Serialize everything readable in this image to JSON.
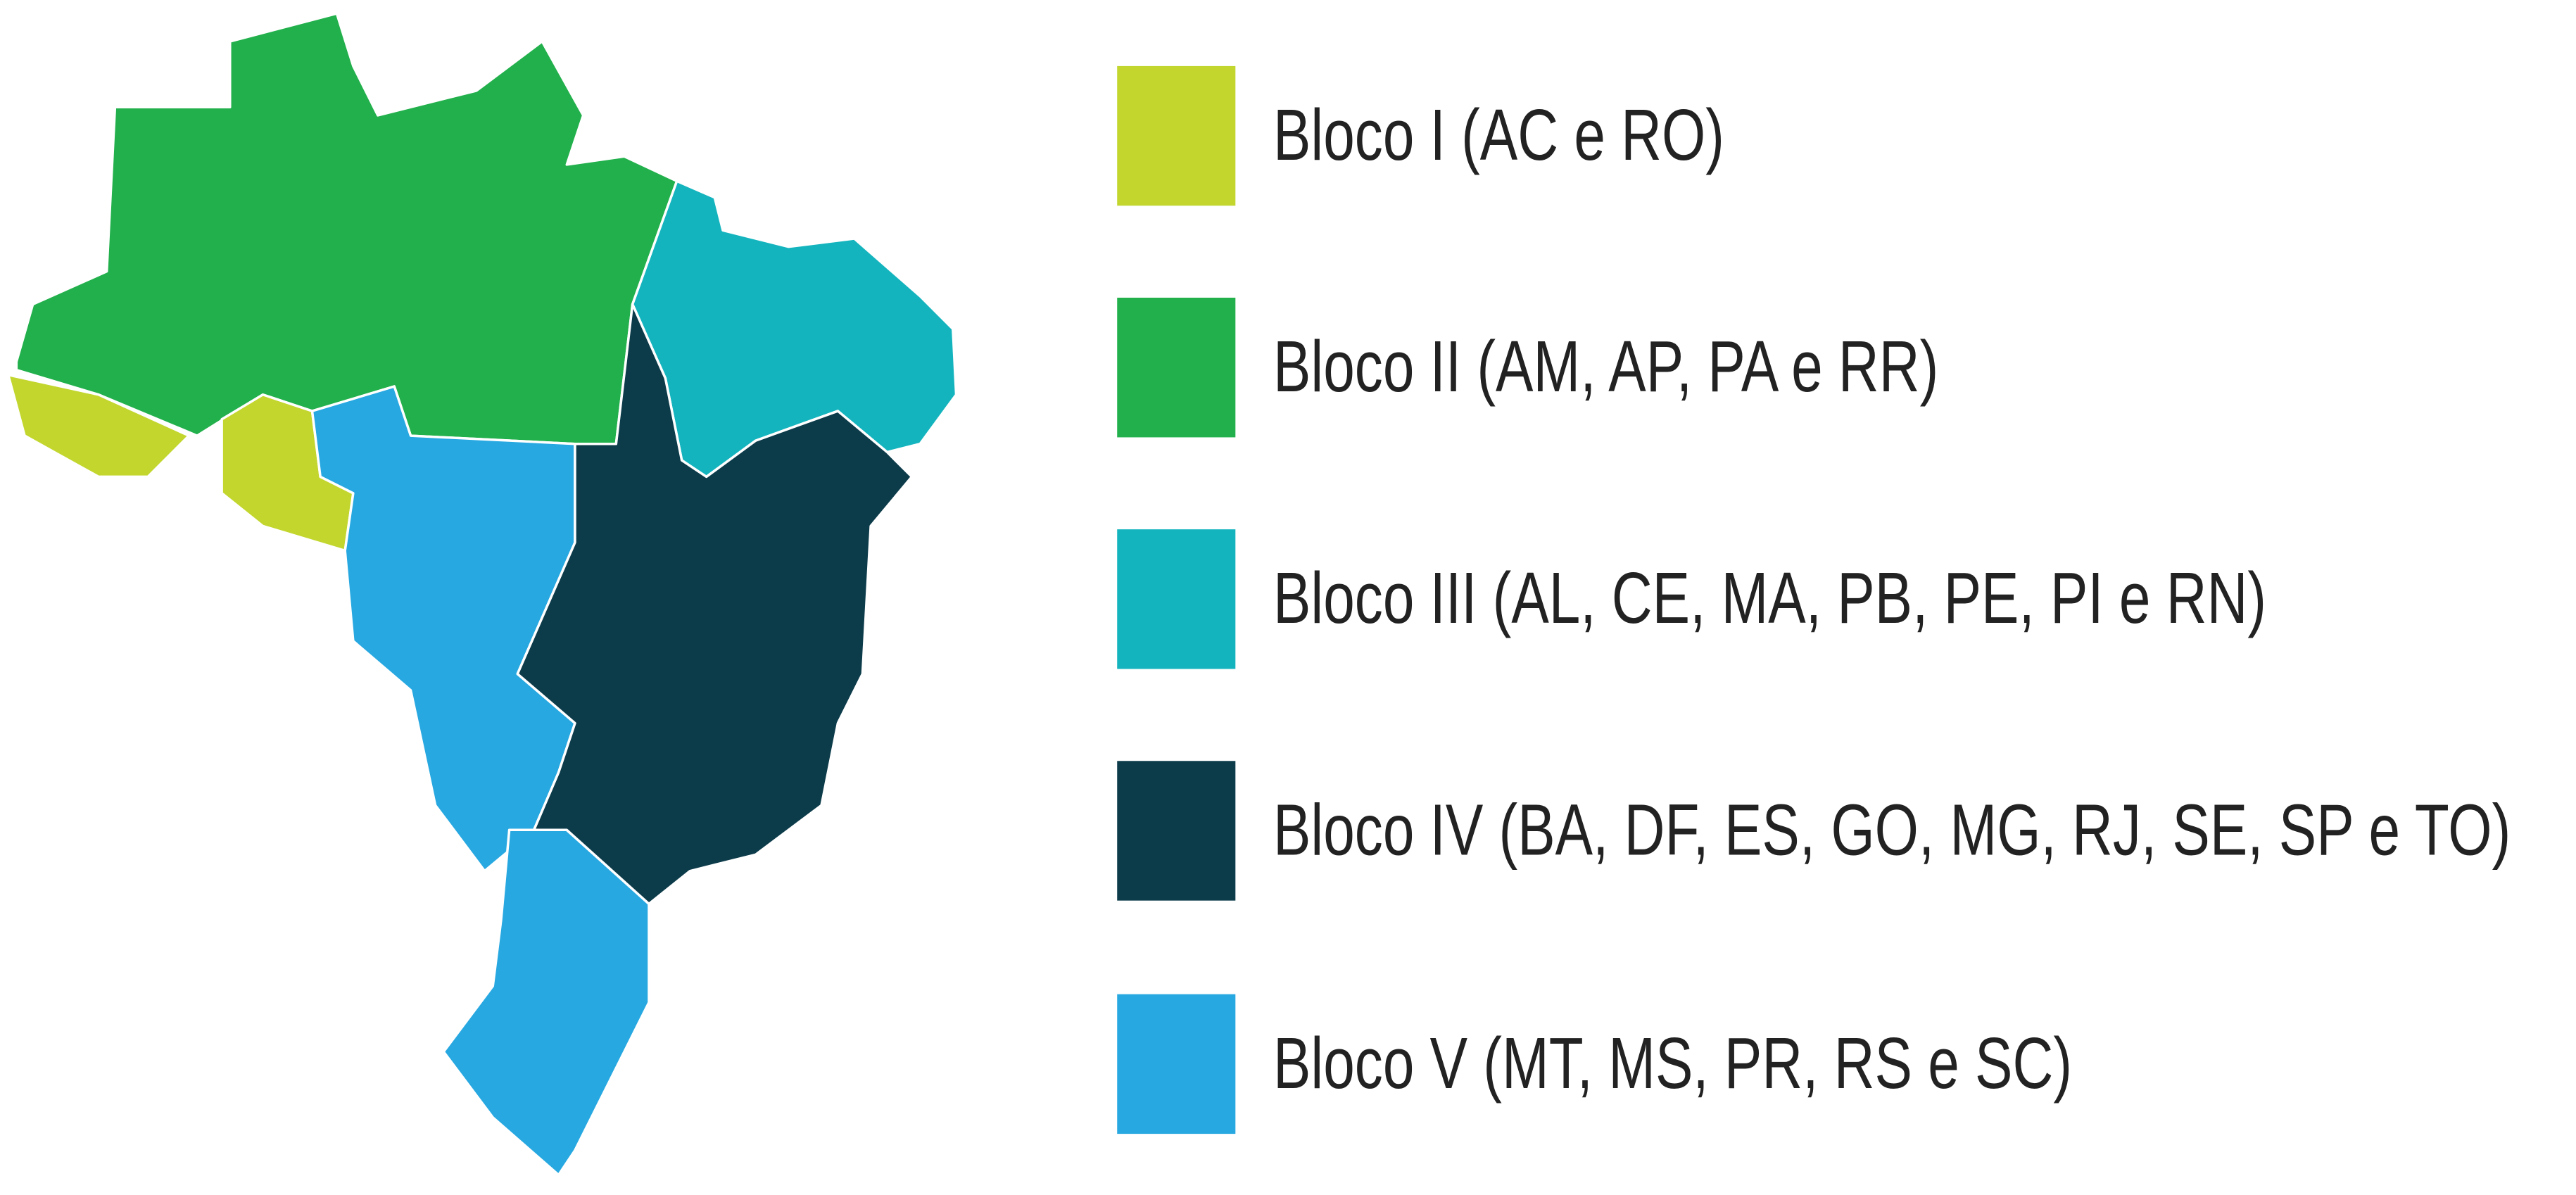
{
  "legend": {
    "items": [
      {
        "label": "Bloco I (AC e RO)",
        "color": "#c2d62e"
      },
      {
        "label": "Bloco II (AM, AP, PA e RR)",
        "color": "#21b04b"
      },
      {
        "label": "Bloco III (AL, CE, MA, PB, PE, PI e RN)",
        "color": "#14b4be"
      },
      {
        "label": "Bloco IV (BA, DF, ES, GO, MG, RJ, SE, SP e TO)",
        "color": "#0c3b4a"
      },
      {
        "label": "Bloco V (MT, MS, PR, RS e SC)",
        "color": "#27a8e1"
      }
    ]
  }
}
